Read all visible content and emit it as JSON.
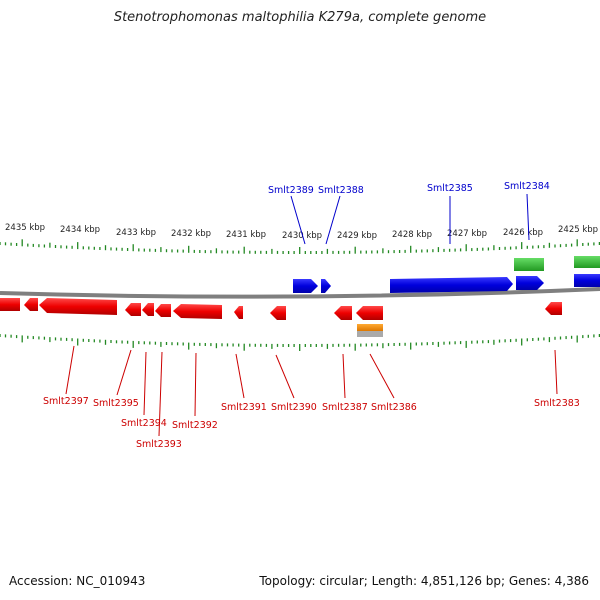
{
  "title": "Stenotrophomonas maltophilia K279a, complete genome",
  "footer": {
    "accession": "Accession: NC_010943",
    "stats": "Topology: circular; Length: 4,851,126 bp; Genes: 4,386"
  },
  "colors": {
    "forward": "#0000ee",
    "reverse": "#ee0000",
    "rna": "#33bb33",
    "misc": "#ff9900",
    "backbone": "#888888",
    "ticks": "#228822"
  },
  "scale": {
    "unit": "kbp",
    "labels": [
      "2435 kbp",
      "2434 kbp",
      "2433 kbp",
      "2432 kbp",
      "2431 kbp",
      "2430 kbp",
      "2429 kbp",
      "2428 kbp",
      "2427 kbp",
      "2426 kbp",
      "2425 kbp"
    ],
    "positions_kbp": [
      2435,
      2434,
      2433,
      2432,
      2431,
      2430,
      2429,
      2428,
      2427,
      2426,
      2425
    ]
  },
  "genes": {
    "forward_labels": [
      "Smlt2389",
      "Smlt2388",
      "Smlt2385",
      "Smlt2384"
    ],
    "reverse_labels": [
      "Smlt2397",
      "Smlt2395",
      "Smlt2394",
      "Smlt2393",
      "Smlt2392",
      "Smlt2391",
      "Smlt2390",
      "Smlt2387",
      "Smlt2386",
      "Smlt2383"
    ]
  }
}
